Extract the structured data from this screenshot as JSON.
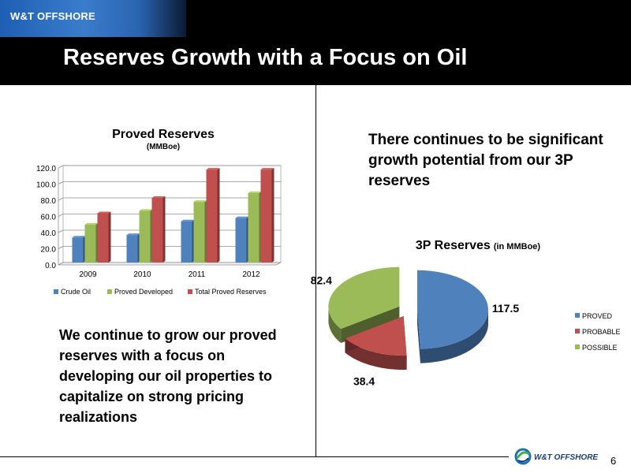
{
  "header": {
    "brand": "W&T OFFSHORE",
    "title": "Reserves Growth with a Focus on Oil"
  },
  "left_text": "We continue to grow our proved reserves with a focus on developing our oil properties to capitalize on strong pricing realizations",
  "right_text": "There continues to be significant growth potential from our 3P reserves",
  "footer": {
    "page_number": "6",
    "logo_text": "W&T OFFSHORE"
  },
  "colors": {
    "blue": "#4f81bd",
    "green": "#9bbb59",
    "red": "#c0504d"
  },
  "chart_data": [
    {
      "type": "bar",
      "title": "Proved Reserves",
      "subtitle": "(MMBoe)",
      "categories": [
        "2009",
        "2010",
        "2011",
        "2012"
      ],
      "series": [
        {
          "name": "Crude Oil",
          "values": [
            31,
            34,
            51,
            55
          ]
        },
        {
          "name": "Proved Developed",
          "values": [
            47,
            64,
            75,
            86
          ]
        },
        {
          "name": "Total Proved Reserves",
          "values": [
            61,
            80,
            115,
            115
          ]
        }
      ],
      "ylim": [
        0,
        120
      ],
      "yticks": [
        "0.0",
        "20.0",
        "40.0",
        "60.0",
        "80.0",
        "100.0",
        "120.0"
      ],
      "grid": true,
      "legend": "bottom",
      "style": "3d"
    },
    {
      "type": "pie",
      "title": "3P Reserves",
      "subtitle": "(in MMBoe)",
      "labels": [
        "PROVED",
        "PROBABLE",
        "POSSIBLE"
      ],
      "values": [
        117.5,
        38.4,
        82.4
      ],
      "data_labels": [
        "117.5",
        "38.4",
        "82.4"
      ],
      "legend": "right",
      "style": "3d exploded"
    }
  ]
}
